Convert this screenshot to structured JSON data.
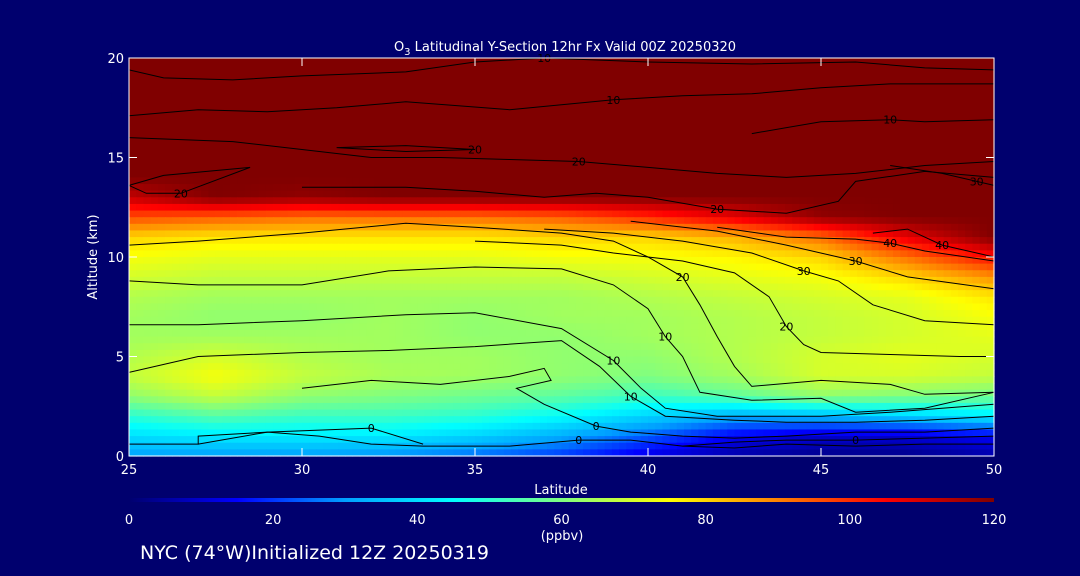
{
  "chart_data": {
    "type": "heatmap",
    "title_prefix": "O",
    "title_subscript": "3",
    "title_rest": " Latitudinal Y-Section 12hr  Fx Valid 00Z 20250320",
    "xlabel": "Latitude",
    "ylabel": "Altitude (km)",
    "xlim": [
      25,
      50
    ],
    "ylim": [
      0,
      20
    ],
    "xticks": [
      "25",
      "30",
      "35",
      "40",
      "45",
      "50"
    ],
    "yticks": [
      "0",
      "5",
      "10",
      "15",
      "20"
    ],
    "colorbar": {
      "min": 0,
      "max": 120,
      "ticks": [
        "0",
        "20",
        "40",
        "60",
        "80",
        "100",
        "120"
      ],
      "units": "(ppbv)",
      "colors": [
        "#00006e",
        "#0000ff",
        "#00a0ff",
        "#00ffff",
        "#80ff80",
        "#ffff00",
        "#ff8000",
        "#ff0000",
        "#800000"
      ]
    },
    "field": {
      "lat": [
        25,
        27.5,
        30,
        32.5,
        35,
        37.5,
        40,
        42.5,
        45,
        47.5,
        50
      ],
      "alt": [
        0,
        1,
        2,
        3,
        4,
        5,
        6,
        7,
        8,
        9,
        10,
        11,
        12,
        13,
        14,
        15,
        16,
        17,
        18,
        19,
        20
      ],
      "values": [
        [
          30,
          30,
          30,
          28,
          25,
          20,
          12,
          6,
          3,
          3,
          6
        ],
        [
          40,
          42,
          42,
          42,
          38,
          32,
          24,
          14,
          10,
          10,
          14
        ],
        [
          50,
          55,
          52,
          52,
          50,
          45,
          38,
          32,
          34,
          38,
          42
        ],
        [
          62,
          68,
          62,
          60,
          58,
          56,
          52,
          56,
          62,
          60,
          58
        ],
        [
          68,
          74,
          68,
          65,
          64,
          62,
          60,
          64,
          70,
          70,
          68
        ],
        [
          66,
          70,
          66,
          64,
          64,
          62,
          62,
          66,
          70,
          72,
          70
        ],
        [
          64,
          64,
          64,
          64,
          62,
          62,
          64,
          66,
          68,
          70,
          72
        ],
        [
          64,
          62,
          62,
          64,
          62,
          64,
          64,
          66,
          68,
          70,
          74
        ],
        [
          66,
          64,
          64,
          64,
          64,
          64,
          66,
          68,
          70,
          72,
          78
        ],
        [
          70,
          68,
          68,
          68,
          68,
          68,
          70,
          72,
          74,
          80,
          88
        ],
        [
          74,
          72,
          72,
          72,
          72,
          74,
          74,
          76,
          80,
          92,
          104
        ],
        [
          80,
          78,
          78,
          78,
          78,
          80,
          80,
          84,
          92,
          108,
          120
        ],
        [
          96,
          94,
          92,
          92,
          92,
          94,
          100,
          108,
          118,
          120,
          120
        ],
        [
          112,
          120,
          118,
          120,
          120,
          120,
          120,
          120,
          120,
          120,
          120
        ],
        [
          120,
          120,
          120,
          120,
          120,
          120,
          120,
          120,
          120,
          120,
          120
        ],
        [
          120,
          120,
          120,
          120,
          120,
          120,
          120,
          120,
          120,
          120,
          120
        ],
        [
          120,
          120,
          120,
          120,
          120,
          120,
          120,
          120,
          120,
          120,
          120
        ],
        [
          120,
          120,
          120,
          120,
          120,
          120,
          120,
          120,
          120,
          120,
          120
        ],
        [
          120,
          120,
          120,
          120,
          120,
          120,
          120,
          120,
          120,
          120,
          120
        ],
        [
          120,
          120,
          120,
          120,
          120,
          120,
          120,
          120,
          120,
          120,
          120
        ],
        [
          120,
          120,
          120,
          120,
          120,
          120,
          120,
          120,
          120,
          120,
          120
        ]
      ]
    },
    "contours": [
      {
        "label": "0",
        "points": [
          [
            25,
            0.6
          ],
          [
            27,
            0.6
          ],
          [
            27,
            1.0
          ],
          [
            29,
            1.2
          ],
          [
            30.5,
            1.0
          ],
          [
            32,
            0.6
          ],
          [
            33.5,
            0.5
          ],
          [
            36,
            0.5
          ],
          [
            38,
            0.8
          ],
          [
            39.5,
            0.8
          ],
          [
            41,
            0.5
          ],
          [
            42.5,
            0.4
          ],
          [
            44,
            0.6
          ],
          [
            46,
            0.5
          ],
          [
            48,
            0.6
          ],
          [
            50,
            0.6
          ]
        ]
      },
      {
        "label": "0",
        "points": [
          [
            41,
            0.5
          ],
          [
            42.5,
            0.7
          ],
          [
            44,
            0.8
          ],
          [
            46,
            0.8
          ],
          [
            48,
            0.9
          ],
          [
            50,
            1.0
          ]
        ]
      },
      {
        "label": "0",
        "points": [
          [
            27,
            0.6
          ],
          [
            29,
            1.2
          ],
          [
            32,
            1.4
          ],
          [
            33.5,
            0.6
          ]
        ]
      },
      {
        "label": "0",
        "points": [
          [
            30,
            3.4
          ],
          [
            32,
            3.8
          ],
          [
            34,
            3.6
          ],
          [
            36,
            4.0
          ],
          [
            37,
            4.4
          ],
          [
            37.2,
            3.8
          ],
          [
            36.2,
            3.4
          ],
          [
            37,
            2.6
          ],
          [
            38.5,
            1.5
          ],
          [
            39.5,
            1.2
          ],
          [
            41,
            1.0
          ],
          [
            42.5,
            0.9
          ],
          [
            44,
            1.0
          ],
          [
            46,
            1.2
          ],
          [
            48,
            1.2
          ],
          [
            50,
            1.4
          ]
        ]
      },
      {
        "label": "10",
        "points": [
          [
            25,
            4.2
          ],
          [
            27,
            5.0
          ],
          [
            30,
            5.2
          ],
          [
            32.5,
            5.3
          ],
          [
            35,
            5.5
          ],
          [
            37.5,
            5.8
          ],
          [
            38.6,
            4.5
          ],
          [
            39.5,
            3.0
          ],
          [
            40.5,
            2.0
          ],
          [
            42.5,
            1.8
          ],
          [
            44,
            1.7
          ],
          [
            46,
            1.7
          ],
          [
            48,
            1.8
          ],
          [
            50,
            2.0
          ]
        ]
      },
      {
        "label": "10",
        "points": [
          [
            25,
            6.6
          ],
          [
            27,
            6.6
          ],
          [
            30,
            6.8
          ],
          [
            33,
            7.1
          ],
          [
            35,
            7.2
          ],
          [
            37.5,
            6.4
          ],
          [
            39,
            4.8
          ],
          [
            39.8,
            3.4
          ],
          [
            40.5,
            2.4
          ],
          [
            42,
            2.0
          ],
          [
            45,
            2.0
          ],
          [
            47,
            2.2
          ],
          [
            50,
            2.6
          ]
        ]
      },
      {
        "label": "10",
        "points": [
          [
            25,
            8.8
          ],
          [
            27,
            8.6
          ],
          [
            30,
            8.6
          ],
          [
            32.5,
            9.3
          ],
          [
            35,
            9.5
          ],
          [
            37.5,
            9.4
          ],
          [
            39,
            8.6
          ],
          [
            40,
            7.4
          ],
          [
            40.5,
            6.0
          ],
          [
            41,
            5.0
          ],
          [
            41.5,
            3.2
          ],
          [
            43,
            2.8
          ],
          [
            45,
            2.9
          ],
          [
            46,
            2.2
          ],
          [
            48,
            2.4
          ],
          [
            50,
            3.2
          ]
        ]
      },
      {
        "label": "20",
        "points": [
          [
            25,
            10.6
          ],
          [
            27,
            10.8
          ],
          [
            30,
            11.2
          ],
          [
            33,
            11.7
          ],
          [
            35,
            11.5
          ],
          [
            37.5,
            11.2
          ],
          [
            39,
            10.8
          ],
          [
            40,
            10.0
          ],
          [
            41,
            9.0
          ],
          [
            41.5,
            7.6
          ],
          [
            42,
            6.0
          ],
          [
            42.5,
            4.5
          ],
          [
            43,
            3.5
          ],
          [
            45,
            3.8
          ],
          [
            47,
            3.6
          ],
          [
            48,
            3.1
          ],
          [
            50,
            3.2
          ]
        ]
      },
      {
        "label": "20",
        "points": [
          [
            35,
            10.8
          ],
          [
            37.5,
            10.6
          ],
          [
            39,
            10.2
          ],
          [
            41,
            9.8
          ],
          [
            42.5,
            9.2
          ],
          [
            43.5,
            8.0
          ],
          [
            44,
            6.5
          ],
          [
            44.5,
            5.6
          ],
          [
            45,
            5.2
          ],
          [
            47,
            5.1
          ],
          [
            49,
            5.0
          ],
          [
            50,
            5.0
          ]
        ]
      },
      {
        "label": "30",
        "points": [
          [
            37,
            11.4
          ],
          [
            39,
            11.2
          ],
          [
            41,
            10.8
          ],
          [
            43,
            10.2
          ],
          [
            44.5,
            9.3
          ],
          [
            45.5,
            8.8
          ],
          [
            46.5,
            7.6
          ],
          [
            48,
            6.8
          ],
          [
            50,
            6.6
          ]
        ]
      },
      {
        "label": "30",
        "points": [
          [
            39.5,
            11.8
          ],
          [
            42,
            11.3
          ],
          [
            44,
            10.6
          ],
          [
            46,
            9.8
          ],
          [
            47.5,
            9.0
          ],
          [
            50,
            8.4
          ]
        ]
      },
      {
        "label": "40",
        "points": [
          [
            42,
            11.5
          ],
          [
            44,
            11.0
          ],
          [
            46,
            10.9
          ],
          [
            47,
            10.7
          ],
          [
            48,
            10.3
          ],
          [
            50,
            9.8
          ]
        ]
      },
      {
        "label": "40",
        "points": [
          [
            46.5,
            11.2
          ],
          [
            47.5,
            11.4
          ],
          [
            48.5,
            10.6
          ],
          [
            49.5,
            10.2
          ],
          [
            50,
            10.0
          ]
        ]
      },
      {
        "label": "20",
        "points": [
          [
            25,
            13.6
          ],
          [
            26,
            14.1
          ],
          [
            28.5,
            14.5
          ],
          [
            26.5,
            13.2
          ],
          [
            25.5,
            13.2
          ],
          [
            25,
            13.6
          ]
        ]
      },
      {
        "label": "20",
        "points": [
          [
            31,
            15.5
          ],
          [
            33,
            15.6
          ],
          [
            35,
            15.4
          ],
          [
            33,
            15.3
          ],
          [
            31,
            15.5
          ]
        ]
      },
      {
        "label": "20",
        "points": [
          [
            25,
            16.0
          ],
          [
            28,
            15.8
          ],
          [
            30,
            15.4
          ],
          [
            32,
            15.0
          ],
          [
            34,
            15.0
          ],
          [
            36,
            14.9
          ],
          [
            38,
            14.8
          ],
          [
            40,
            14.5
          ],
          [
            42,
            14.2
          ],
          [
            44,
            14.0
          ],
          [
            46,
            14.2
          ],
          [
            48,
            14.6
          ],
          [
            50,
            14.8
          ]
        ]
      },
      {
        "label": "20",
        "points": [
          [
            30,
            13.5
          ],
          [
            33,
            13.5
          ],
          [
            35,
            13.3
          ],
          [
            37,
            13.0
          ],
          [
            38.5,
            13.2
          ],
          [
            40,
            13.0
          ],
          [
            42,
            12.4
          ],
          [
            44,
            12.2
          ],
          [
            45.5,
            12.8
          ],
          [
            46,
            13.8
          ],
          [
            48,
            14.3
          ],
          [
            50,
            14.0
          ]
        ]
      },
      {
        "label": "10",
        "points": [
          [
            25,
            17.1
          ],
          [
            27,
            17.4
          ],
          [
            29,
            17.3
          ],
          [
            31,
            17.5
          ],
          [
            33,
            17.8
          ],
          [
            36,
            17.4
          ],
          [
            39,
            17.9
          ],
          [
            41,
            18.1
          ],
          [
            43,
            18.2
          ],
          [
            45,
            18.5
          ],
          [
            47,
            18.7
          ],
          [
            50,
            18.7
          ]
        ]
      },
      {
        "label": "10",
        "points": [
          [
            25,
            19.4
          ],
          [
            26,
            19.0
          ],
          [
            28,
            18.9
          ],
          [
            30,
            19.1
          ],
          [
            33,
            19.3
          ],
          [
            35,
            19.8
          ],
          [
            37,
            20.0
          ],
          [
            40,
            19.8
          ],
          [
            43,
            19.7
          ],
          [
            46,
            19.8
          ],
          [
            48,
            19.5
          ],
          [
            50,
            19.4
          ]
        ]
      },
      {
        "label": "10",
        "points": [
          [
            43,
            16.2
          ],
          [
            45,
            16.8
          ],
          [
            47,
            16.9
          ],
          [
            48,
            16.8
          ],
          [
            50,
            16.9
          ]
        ]
      },
      {
        "label": "30",
        "points": [
          [
            47,
            14.6
          ],
          [
            48.5,
            14.2
          ],
          [
            49.5,
            13.8
          ],
          [
            50,
            13.6
          ]
        ]
      }
    ]
  },
  "footer": "NYC (74°W)Initialized 12Z 20250319"
}
